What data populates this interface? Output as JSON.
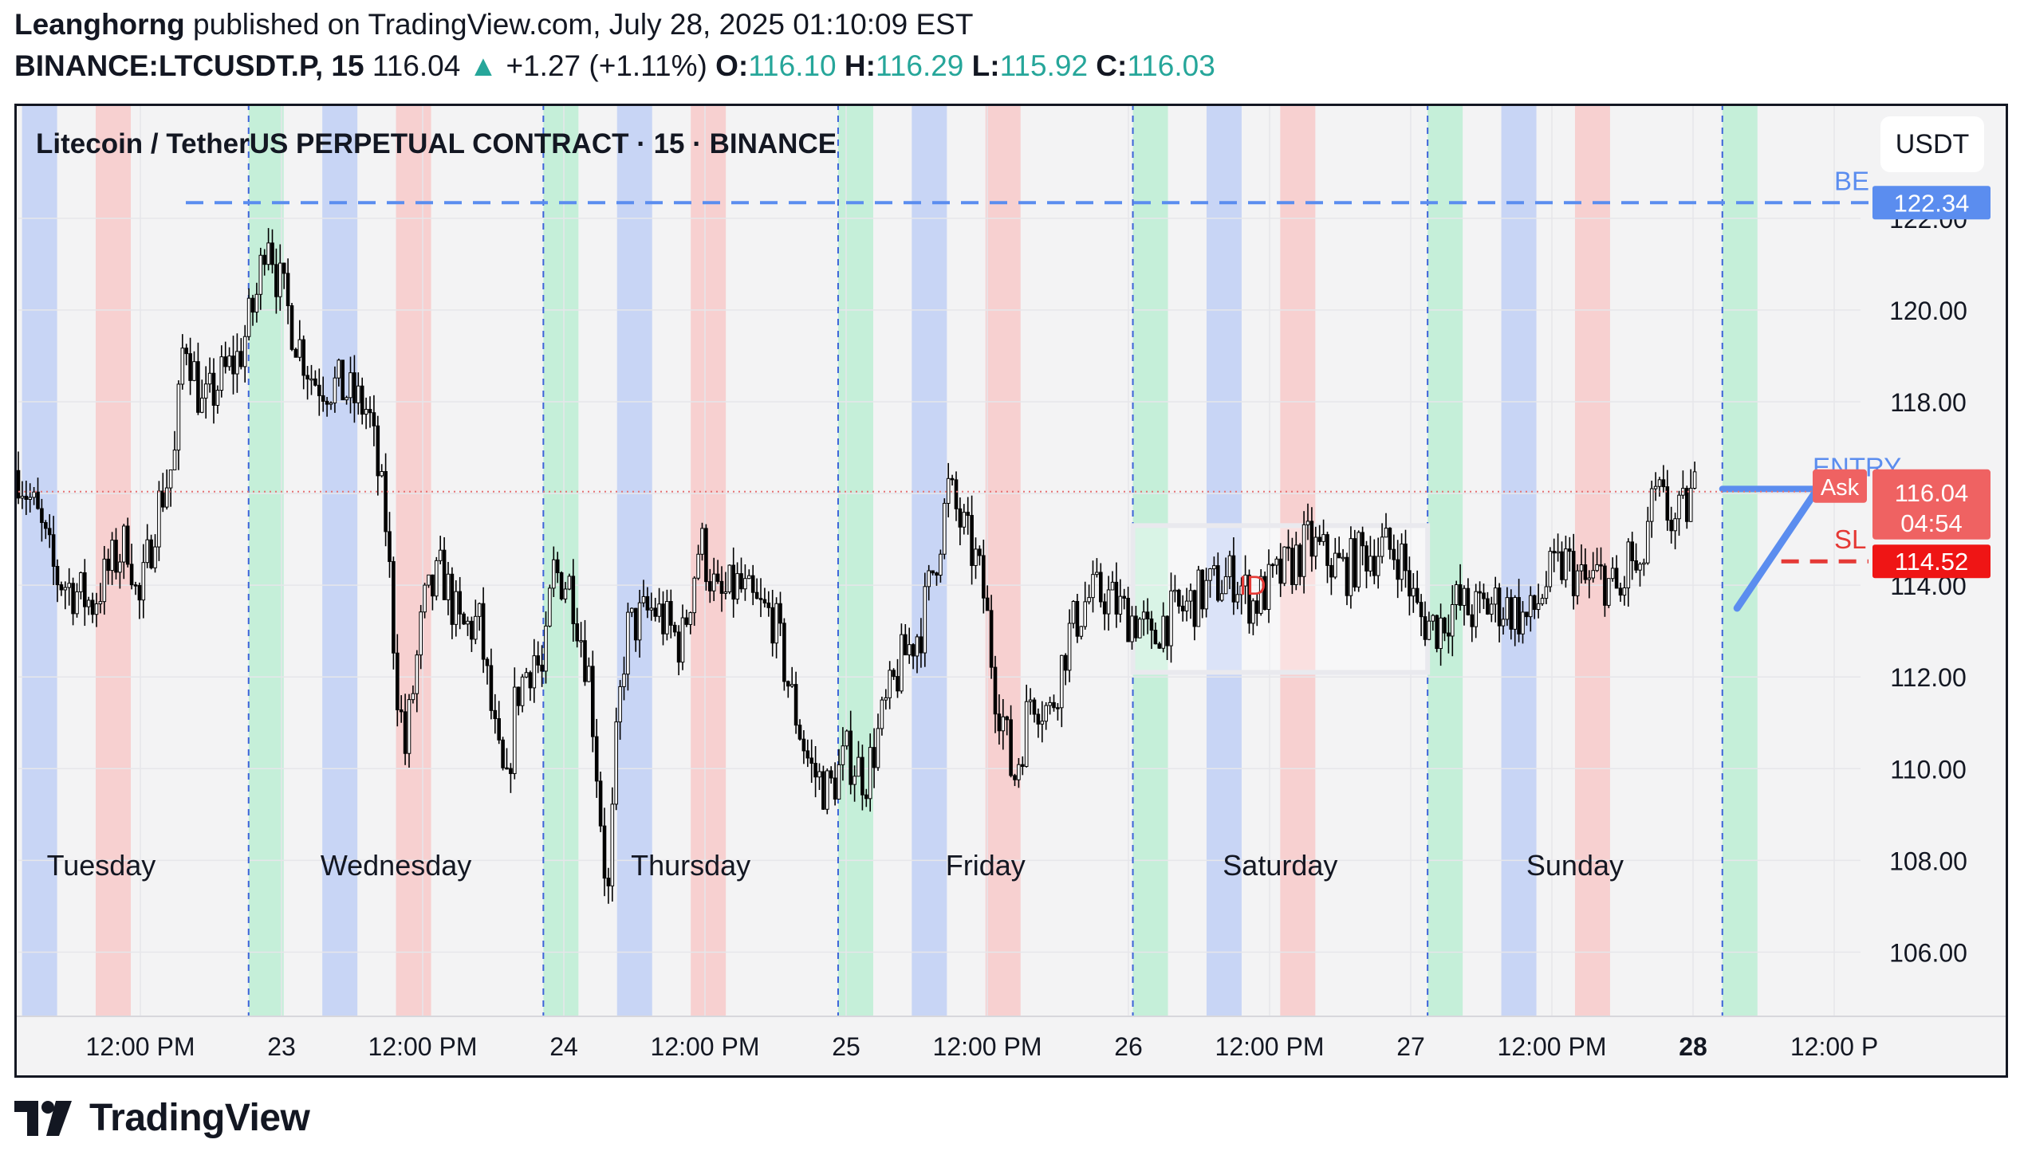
{
  "header": {
    "author": "Leanghorng",
    "published_text": "published on TradingView.com, July 28, 2025 01:10:09 EST",
    "symbol": "BINANCE:LTCUSDT.P, 15",
    "last": "116.04",
    "change_arrow": "▲",
    "change": "+1.27 (+1.11%)",
    "o_label": "O:",
    "o": "116.10",
    "h_label": "H:",
    "h": "116.29",
    "l_label": "L:",
    "l": "115.92",
    "c_label": "C:",
    "c": "116.03"
  },
  "chart_data": {
    "type": "candlestick",
    "title": "Litecoin / TetherUS PERPETUAL CONTRACT · 15 · BINANCE",
    "currency": "USDT",
    "ylim": [
      104.6,
      124.5
    ],
    "y_ticks": [
      "106.00",
      "108.00",
      "110.00",
      "112.00",
      "114.00",
      "116.00",
      "118.00",
      "120.00",
      "122.00"
    ],
    "x_ticks": [
      "12:00 PM",
      "23",
      "12:00 PM",
      "24",
      "12:00 PM",
      "25",
      "12:00 PM",
      "26",
      "12:00 PM",
      "27",
      "12:00 PM",
      "28",
      "12:00 P"
    ],
    "x_ticks_bold": [
      "28"
    ],
    "day_labels": [
      "Tuesday",
      "Wednesday",
      "Thursday",
      "Friday",
      "Saturday",
      "Sunday"
    ],
    "price_path": [
      [
        0,
        116.5
      ],
      [
        0.01,
        115.5
      ],
      [
        0.02,
        114.2
      ],
      [
        0.04,
        113.6
      ],
      [
        0.05,
        114.4
      ],
      [
        0.06,
        115.0
      ],
      [
        0.065,
        113.4
      ],
      [
        0.075,
        115.6
      ],
      [
        0.085,
        116.8
      ],
      [
        0.09,
        119.6
      ],
      [
        0.1,
        117.8
      ],
      [
        0.11,
        118.5
      ],
      [
        0.12,
        119.0
      ],
      [
        0.13,
        120.4
      ],
      [
        0.135,
        122.0
      ],
      [
        0.14,
        120.8
      ],
      [
        0.15,
        119.5
      ],
      [
        0.16,
        118.5
      ],
      [
        0.175,
        118.3
      ],
      [
        0.19,
        117.8
      ],
      [
        0.2,
        115.2
      ],
      [
        0.205,
        112.0
      ],
      [
        0.21,
        110.4
      ],
      [
        0.22,
        113.5
      ],
      [
        0.23,
        114.3
      ],
      [
        0.24,
        113.0
      ],
      [
        0.25,
        113.2
      ],
      [
        0.26,
        110.3
      ],
      [
        0.265,
        109.4
      ],
      [
        0.27,
        111.6
      ],
      [
        0.28,
        112.5
      ],
      [
        0.285,
        111.9
      ],
      [
        0.29,
        114.3
      ],
      [
        0.3,
        114.0
      ],
      [
        0.31,
        112.0
      ],
      [
        0.315,
        109.5
      ],
      [
        0.32,
        107.0
      ],
      [
        0.325,
        110.8
      ],
      [
        0.33,
        113.0
      ],
      [
        0.345,
        113.5
      ],
      [
        0.36,
        112.7
      ],
      [
        0.37,
        115.0
      ],
      [
        0.38,
        113.6
      ],
      [
        0.39,
        114.0
      ],
      [
        0.4,
        113.5
      ],
      [
        0.41,
        113.3
      ],
      [
        0.42,
        111.5
      ],
      [
        0.43,
        110.0
      ],
      [
        0.44,
        109.5
      ],
      [
        0.45,
        110.3
      ],
      [
        0.46,
        109.8
      ],
      [
        0.47,
        111.2
      ],
      [
        0.48,
        112.4
      ],
      [
        0.49,
        113.1
      ],
      [
        0.5,
        115.0
      ],
      [
        0.505,
        116.1
      ],
      [
        0.51,
        115.5
      ],
      [
        0.52,
        114.5
      ],
      [
        0.525,
        113.6
      ],
      [
        0.53,
        111.8
      ],
      [
        0.535,
        111.0
      ],
      [
        0.54,
        109.7
      ],
      [
        0.545,
        110.6
      ],
      [
        0.55,
        111.7
      ],
      [
        0.56,
        111.2
      ],
      [
        0.57,
        112.9
      ],
      [
        0.58,
        113.7
      ],
      [
        0.59,
        113.8
      ],
      [
        0.6,
        113.4
      ],
      [
        0.61,
        113.2
      ],
      [
        0.615,
        112.6
      ],
      [
        0.62,
        113.2
      ],
      [
        0.63,
        113.4
      ],
      [
        0.645,
        113.9
      ],
      [
        0.66,
        114.2
      ],
      [
        0.67,
        113.6
      ],
      [
        0.68,
        114.0
      ],
      [
        0.69,
        114.4
      ],
      [
        0.7,
        114.9
      ],
      [
        0.71,
        114.6
      ],
      [
        0.72,
        114.3
      ],
      [
        0.73,
        114.7
      ],
      [
        0.74,
        114.8
      ],
      [
        0.75,
        114.7
      ],
      [
        0.76,
        113.3
      ],
      [
        0.77,
        113.1
      ],
      [
        0.78,
        113.6
      ],
      [
        0.79,
        113.4
      ],
      [
        0.8,
        113.6
      ],
      [
        0.81,
        113.5
      ],
      [
        0.82,
        113.2
      ],
      [
        0.83,
        114.1
      ],
      [
        0.84,
        114.5
      ],
      [
        0.85,
        114.0
      ],
      [
        0.86,
        114.2
      ],
      [
        0.87,
        113.7
      ],
      [
        0.875,
        114.8
      ],
      [
        0.88,
        113.8
      ],
      [
        0.885,
        115.5
      ],
      [
        0.89,
        115.9
      ],
      [
        0.9,
        115.3
      ],
      [
        0.91,
        116.04
      ]
    ],
    "bands": [
      {
        "time": 0.002,
        "color": "blue"
      },
      {
        "time": 0.042,
        "color": "red"
      },
      {
        "time": 0.125,
        "color": "green"
      },
      {
        "time": 0.165,
        "color": "blue"
      },
      {
        "time": 0.205,
        "color": "red"
      },
      {
        "time": 0.285,
        "color": "green"
      },
      {
        "time": 0.325,
        "color": "blue"
      },
      {
        "time": 0.365,
        "color": "red"
      },
      {
        "time": 0.445,
        "color": "green"
      },
      {
        "time": 0.485,
        "color": "blue"
      },
      {
        "time": 0.525,
        "color": "red"
      },
      {
        "time": 0.605,
        "color": "green"
      },
      {
        "time": 0.645,
        "color": "blue"
      },
      {
        "time": 0.685,
        "color": "red"
      },
      {
        "time": 0.765,
        "color": "green"
      },
      {
        "time": 0.805,
        "color": "blue"
      },
      {
        "time": 0.845,
        "color": "red"
      },
      {
        "time": 0.925,
        "color": "green"
      }
    ],
    "band_colors": {
      "blue": "#c8d5f5",
      "red": "#f7d0d0",
      "green": "#c5efd9"
    },
    "day_separators": [
      0.125,
      0.285,
      0.445,
      0.605,
      0.765,
      0.925
    ],
    "levels": [
      {
        "name": "BE",
        "price": 122.34,
        "tag": "122.34",
        "color": "#5b8def",
        "style": "dashed"
      },
      {
        "name": "SL",
        "price": 114.52,
        "tag": "114.52",
        "color": "#e53935",
        "style": "dashed"
      },
      {
        "name": "ENTRY",
        "price": 116.1,
        "color": "#5b8def",
        "style": "solid"
      },
      {
        "name": "last",
        "price": 116.04,
        "tag": "116.04",
        "sub_tag": "04:54",
        "ask_label": "Ask",
        "color": "#e57373",
        "style": "dotted"
      }
    ],
    "annotations": [
      {
        "text": "ID",
        "time": 0.67,
        "price": 114.0,
        "color": "#e53935"
      }
    ],
    "range_box": {
      "t0": 0.605,
      "t1": 0.765,
      "p_top": 115.3,
      "p_bottom": 112.1
    },
    "trendline": {
      "t0": 0.933,
      "p0": 113.5,
      "t1": 0.975,
      "p1": 116.0,
      "color": "#5b8def"
    }
  },
  "footer": {
    "brand": "TradingView"
  }
}
